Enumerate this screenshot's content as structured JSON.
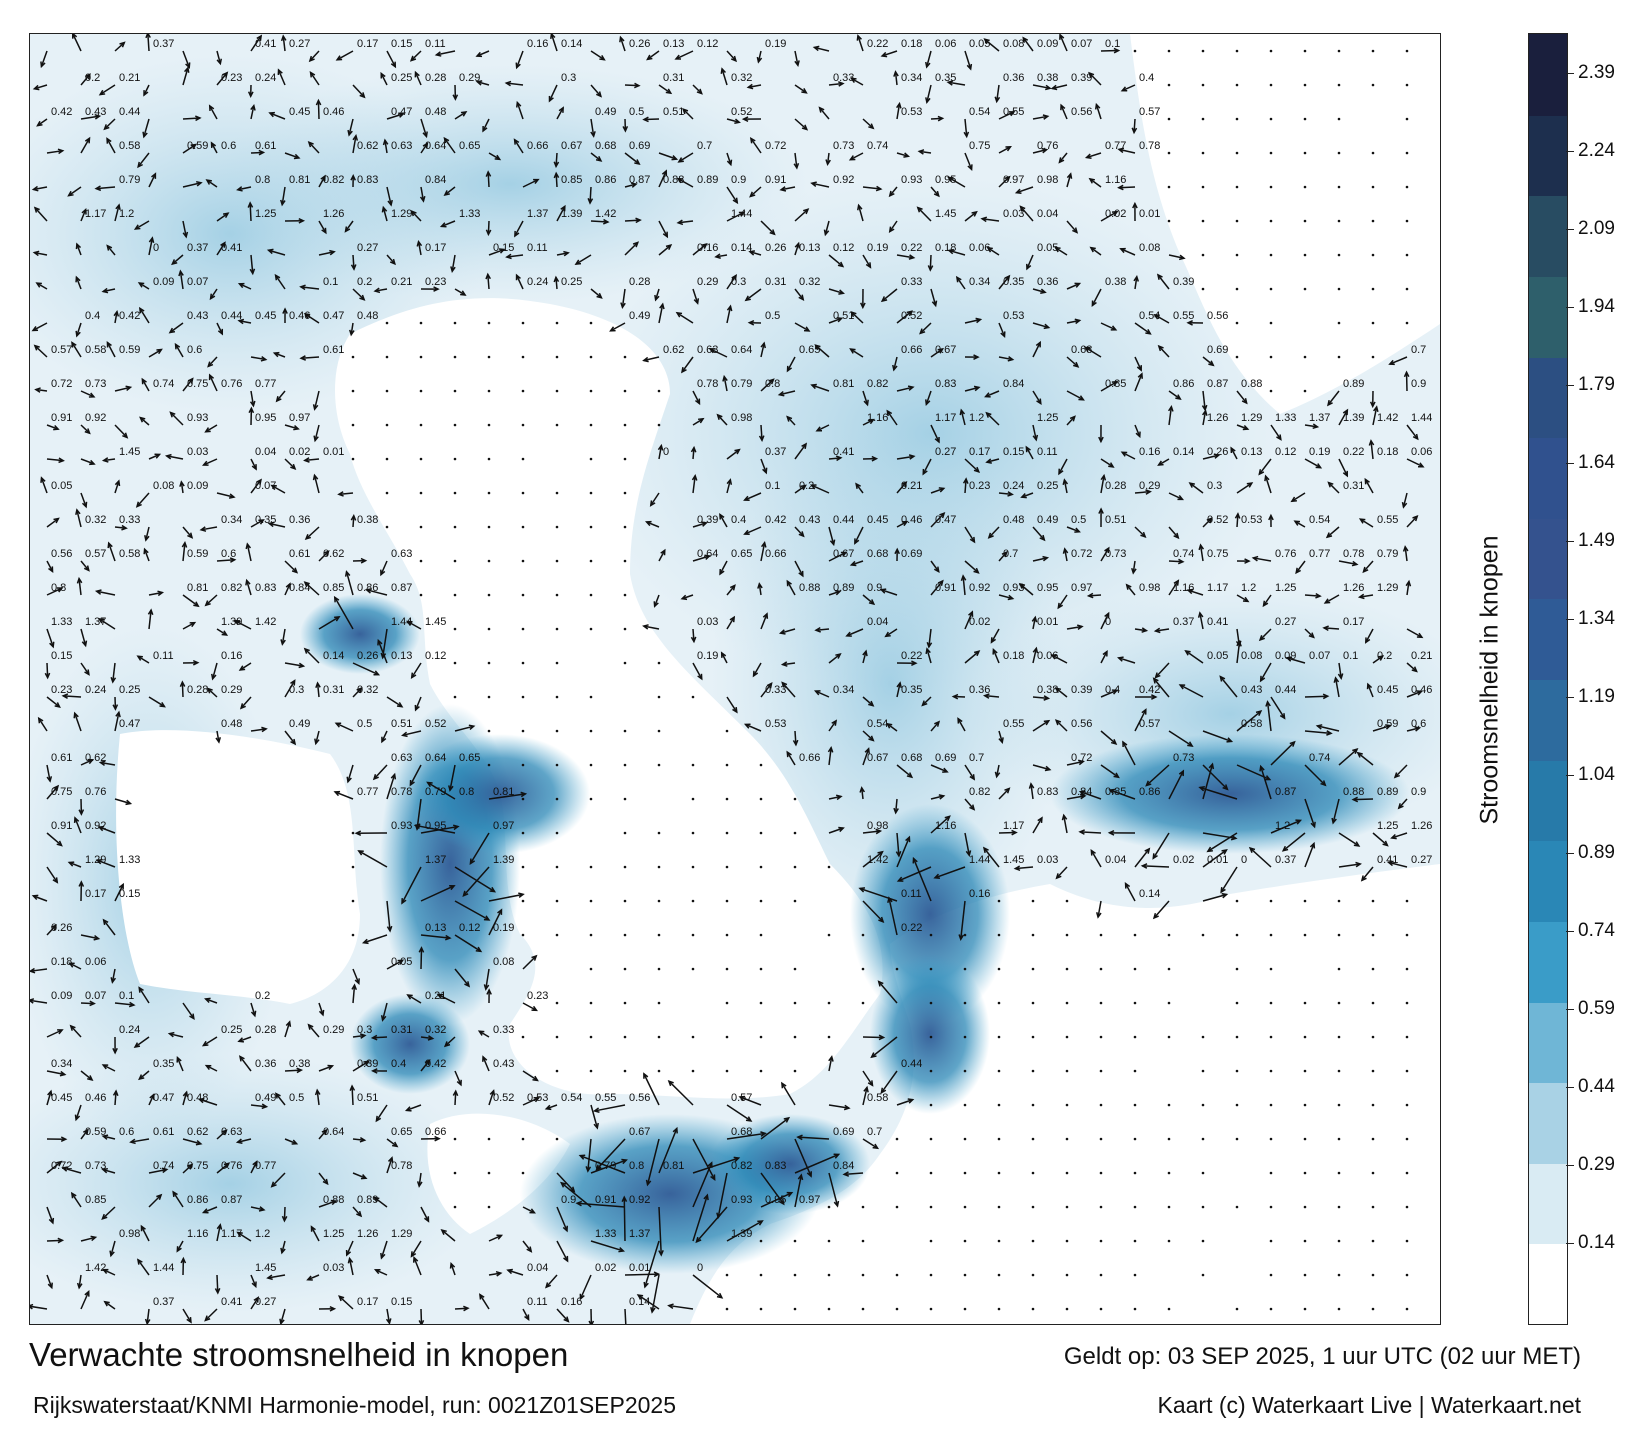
{
  "map": {
    "title": "Verwachte stroomsnelheid in knopen",
    "model_run": "Rijkswaterstaat/KNMI Harmonie-model, run: 0021Z01SEP2025",
    "valid_time": "Geldt op: 03 SEP 2025, 1 uur UTC (02 uur MET)",
    "credit": "Kaart (c) Waterkaart Live | Waterkaart.net",
    "colorbar": {
      "title": "Stroomsnelheid in knopen",
      "ticks": [
        "0.14",
        "0.29",
        "0.44",
        "0.59",
        "0.74",
        "0.89",
        "1.04",
        "1.19",
        "1.34",
        "1.49",
        "1.64",
        "1.79",
        "1.94",
        "2.09",
        "2.24",
        "2.39"
      ],
      "bands": [
        "#ffffff",
        "#d9ebf3",
        "#a9d2e5",
        "#6fb6d6",
        "#3a9cc8",
        "#2a87b6",
        "#277aa9",
        "#2d6b9e",
        "#2f5b96",
        "#34528e",
        "#30518e",
        "#2c4f82",
        "#2e5f6b",
        "#284c62",
        "#1d2f4e",
        "#1a1f3d"
      ]
    },
    "sample_labels": [
      "0.37",
      "0.41",
      "0.27",
      "0.17",
      "0.15",
      "0.11",
      "0.16",
      "0.14",
      "0.26",
      "0.13",
      "0.12",
      "0.19",
      "0.22",
      "0.18",
      "0.06",
      "0.05",
      "0.08",
      "0.09",
      "0.07",
      "0.1",
      "0.2",
      "0.21",
      "0.23",
      "0.24",
      "0.25",
      "0.28",
      "0.29",
      "0.3",
      "0.31",
      "0.32",
      "0.33",
      "0.34",
      "0.35",
      "0.36",
      "0.38",
      "0.39",
      "0.4",
      "0.42",
      "0.43",
      "0.44",
      "0.45",
      "0.46",
      "0.47",
      "0.48",
      "0.49",
      "0.5",
      "0.51",
      "0.52",
      "0.53",
      "0.54",
      "0.55",
      "0.56",
      "0.57",
      "0.58",
      "0.59",
      "0.6",
      "0.61",
      "0.62",
      "0.63",
      "0.64",
      "0.65",
      "0.66",
      "0.67",
      "0.68",
      "0.69",
      "0.7",
      "0.72",
      "0.73",
      "0.74",
      "0.75",
      "0.76",
      "0.77",
      "0.78",
      "0.79",
      "0.8",
      "0.81",
      "0.82",
      "0.83",
      "0.84",
      "0.85",
      "0.86",
      "0.87",
      "0.88",
      "0.89",
      "0.9",
      "0.91",
      "0.92",
      "0.93",
      "0.95",
      "0.97",
      "0.98",
      "1.16",
      "1.17",
      "1.2",
      "1.25",
      "1.26",
      "1.29",
      "1.33",
      "1.37",
      "1.39",
      "1.42",
      "1.44",
      "1.45",
      "0.03",
      "0.04",
      "0.02",
      "0.01",
      "0"
    ]
  }
}
